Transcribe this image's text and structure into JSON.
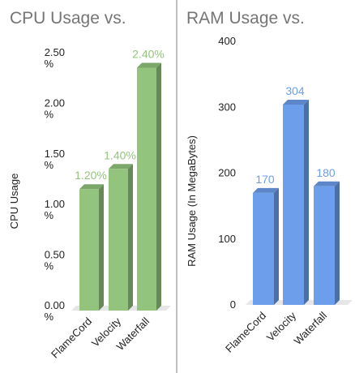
{
  "chart_data": [
    {
      "type": "bar",
      "title": "CPU Usage vs.",
      "xlabel": "",
      "ylabel": "CPU Usage",
      "categories": [
        "FlameCord",
        "Velocity",
        "Waterfall"
      ],
      "values": [
        1.2,
        1.4,
        2.4
      ],
      "data_labels": [
        "1.20%",
        "1.40%",
        "2.40%"
      ],
      "y_ticks": [
        {
          "value": 0,
          "line1": "0.00",
          "line2": "%"
        },
        {
          "value": 0.5,
          "line1": "0.50",
          "line2": "%"
        },
        {
          "value": 1.0,
          "line1": "1.00",
          "line2": "%"
        },
        {
          "value": 1.5,
          "line1": "1.50",
          "line2": "%"
        },
        {
          "value": 2.0,
          "line1": "2.00",
          "line2": "%"
        },
        {
          "value": 2.5,
          "line1": "2.50",
          "line2": "%"
        }
      ],
      "ylim": [
        0,
        2.5
      ],
      "grid": false,
      "legend": "none",
      "color": "#93c47d",
      "label_color": "#93c47d"
    },
    {
      "type": "bar",
      "title": "RAM Usage vs.",
      "xlabel": "",
      "ylabel": "RAM Usage (In MegaBytes)",
      "categories": [
        "FlameCord",
        "Velocity",
        "Waterfall"
      ],
      "values": [
        170,
        304,
        180
      ],
      "data_labels": [
        "170",
        "304",
        "180"
      ],
      "y_ticks": [
        {
          "value": 0,
          "line1": "0"
        },
        {
          "value": 100,
          "line1": "100"
        },
        {
          "value": 200,
          "line1": "200"
        },
        {
          "value": 300,
          "line1": "300"
        },
        {
          "value": 400,
          "line1": "400"
        }
      ],
      "ylim": [
        0,
        400
      ],
      "grid": false,
      "legend": "none",
      "color": "#6d9eeb",
      "label_color": "#6d9eeb"
    }
  ]
}
